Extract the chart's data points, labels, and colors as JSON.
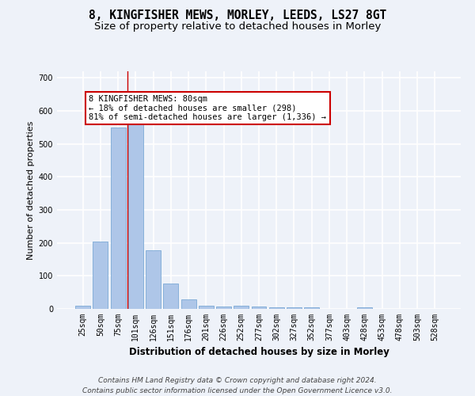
{
  "title1": "8, KINGFISHER MEWS, MORLEY, LEEDS, LS27 8GT",
  "title2": "Size of property relative to detached houses in Morley",
  "xlabel": "Distribution of detached houses by size in Morley",
  "ylabel": "Number of detached properties",
  "categories": [
    "25sqm",
    "50sqm",
    "75sqm",
    "101sqm",
    "126sqm",
    "151sqm",
    "176sqm",
    "201sqm",
    "226sqm",
    "252sqm",
    "277sqm",
    "302sqm",
    "327sqm",
    "352sqm",
    "377sqm",
    "403sqm",
    "428sqm",
    "453sqm",
    "478sqm",
    "503sqm",
    "528sqm"
  ],
  "values": [
    10,
    205,
    550,
    560,
    178,
    76,
    28,
    10,
    7,
    10,
    8,
    5,
    5,
    4,
    0,
    0,
    5,
    0,
    0,
    0,
    0
  ],
  "bar_color": "#aec6e8",
  "bar_edgecolor": "#6a9fd0",
  "bar_linewidth": 0.5,
  "red_line_x": 2.55,
  "annotation_line1": "8 KINGFISHER MEWS: 80sqm",
  "annotation_line2": "← 18% of detached houses are smaller (298)",
  "annotation_line3": "81% of semi-detached houses are larger (1,336) →",
  "annotation_box_color": "#ffffff",
  "annotation_box_edgecolor": "#cc0000",
  "ylim": [
    0,
    720
  ],
  "yticks": [
    0,
    100,
    200,
    300,
    400,
    500,
    600,
    700
  ],
  "background_color": "#eef2f9",
  "grid_color": "#ffffff",
  "footer_line1": "Contains HM Land Registry data © Crown copyright and database right 2024.",
  "footer_line2": "Contains public sector information licensed under the Open Government Licence v3.0.",
  "title1_fontsize": 10.5,
  "title2_fontsize": 9.5,
  "xlabel_fontsize": 8.5,
  "ylabel_fontsize": 8,
  "tick_fontsize": 7,
  "annotation_fontsize": 7.5,
  "footer_fontsize": 6.5
}
